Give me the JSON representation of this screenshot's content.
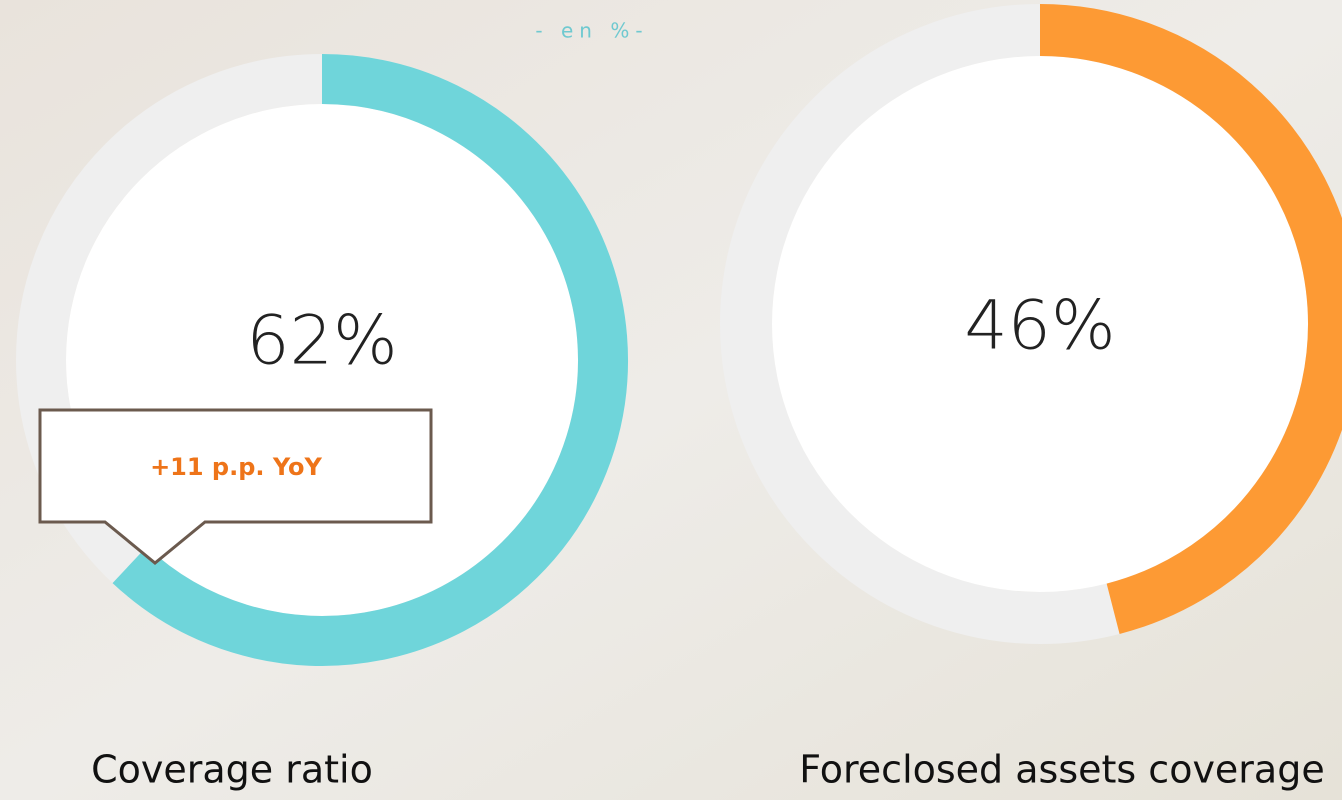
{
  "subtitle": "- en %-",
  "chart_data": [
    {
      "type": "donut",
      "title": "Coverage ratio",
      "values": [
        62
      ],
      "value_labels": [
        "62%"
      ],
      "color": "#6fd5da",
      "annotation": "+11 p.p. YoY"
    },
    {
      "type": "donut",
      "title": "Foreclosed assets coverage",
      "values": [
        46
      ],
      "value_labels": [
        "46%"
      ],
      "color": "#fd9a34"
    }
  ]
}
